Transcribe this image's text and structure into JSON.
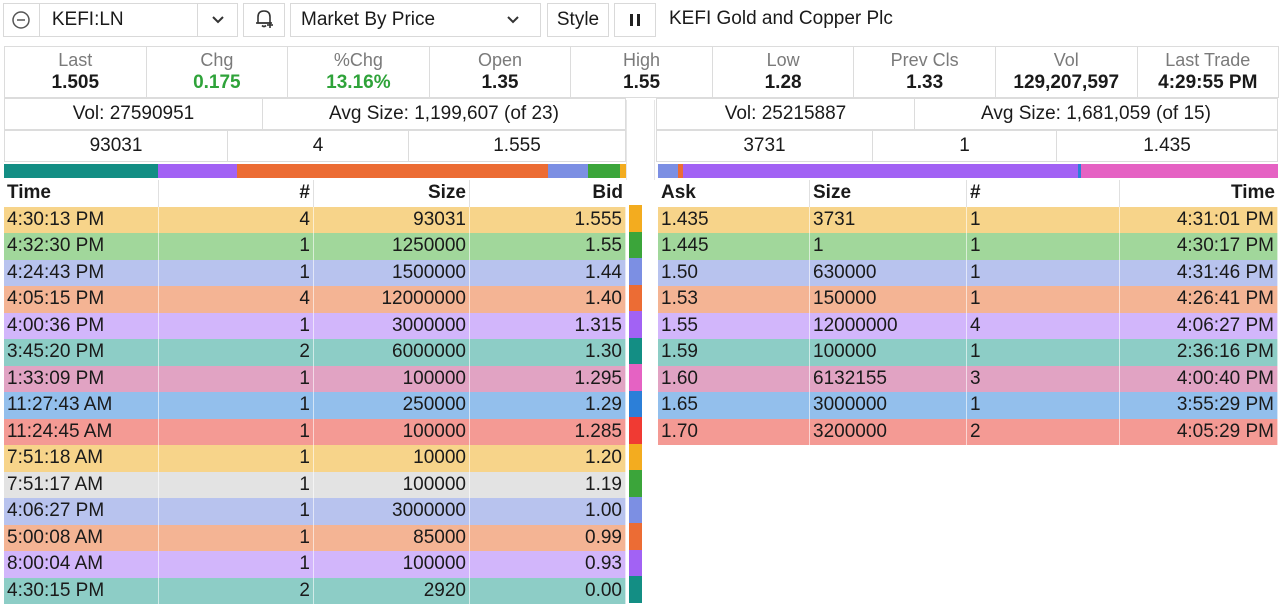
{
  "toolbar": {
    "symbol": "KEFI:LN",
    "view": "Market By Price",
    "style_label": "Style",
    "company_name": "KEFI Gold and Copper Plc"
  },
  "icons": {
    "collapse": "minus-circle-icon",
    "dropdown": "chevron-down-icon",
    "alert": "bell-plus-icon",
    "pause": "pause-icon"
  },
  "stats": [
    {
      "label": "Last",
      "value": "1.505"
    },
    {
      "label": "Chg",
      "value": "0.175",
      "color": "#2fa33a"
    },
    {
      "label": "%Chg",
      "value": "13.16%",
      "color": "#2fa33a"
    },
    {
      "label": "Open",
      "value": "1.35"
    },
    {
      "label": "High",
      "value": "1.55"
    },
    {
      "label": "Low",
      "value": "1.28"
    },
    {
      "label": "Prev Cls",
      "value": "1.33"
    },
    {
      "label": "Vol",
      "value": "129,207,597"
    },
    {
      "label": "Last Trade",
      "value": "4:29:55 PM"
    }
  ],
  "bid_summary": {
    "vol": "Vol: 27590951",
    "avg": "Avg Size: 1,199,607 (of 23)",
    "top_size": "93031",
    "top_count": "4",
    "top_price": "1.555"
  },
  "ask_summary": {
    "vol": "Vol: 25215887",
    "avg": "Avg Size: 1,681,059 (of 15)",
    "top_size": "3731",
    "top_count": "1",
    "top_price": "1.435"
  },
  "bid_headers": {
    "time": "Time",
    "count": "#",
    "size": "Size",
    "price": "Bid"
  },
  "ask_headers": {
    "price": "Ask",
    "size": "Size",
    "count": "#",
    "time": "Time"
  },
  "bids": [
    {
      "time": "4:30:13 PM",
      "count": "4",
      "size": "93031",
      "price": "1.555"
    },
    {
      "time": "4:32:30 PM",
      "count": "1",
      "size": "1250000",
      "price": "1.55"
    },
    {
      "time": "4:24:43 PM",
      "count": "1",
      "size": "1500000",
      "price": "1.44"
    },
    {
      "time": "4:05:15 PM",
      "count": "4",
      "size": "12000000",
      "price": "1.40"
    },
    {
      "time": "4:00:36 PM",
      "count": "1",
      "size": "3000000",
      "price": "1.315"
    },
    {
      "time": "3:45:20 PM",
      "count": "2",
      "size": "6000000",
      "price": "1.30"
    },
    {
      "time": "1:33:09 PM",
      "count": "1",
      "size": "100000",
      "price": "1.295"
    },
    {
      "time": "11:27:43 AM",
      "count": "1",
      "size": "250000",
      "price": "1.29"
    },
    {
      "time": "11:24:45 AM",
      "count": "1",
      "size": "100000",
      "price": "1.285"
    },
    {
      "time": "7:51:18 AM",
      "count": "1",
      "size": "10000",
      "price": "1.20"
    },
    {
      "time": "7:51:17 AM",
      "count": "1",
      "size": "100000",
      "price": "1.19"
    },
    {
      "time": "4:06:27 PM",
      "count": "1",
      "size": "3000000",
      "price": "1.00"
    },
    {
      "time": "5:00:08 AM",
      "count": "1",
      "size": "85000",
      "price": "0.99"
    },
    {
      "time": "8:00:04 AM",
      "count": "1",
      "size": "100000",
      "price": "0.93"
    },
    {
      "time": "4:30:15 PM",
      "count": "2",
      "size": "2920",
      "price": "0.00"
    }
  ],
  "asks": [
    {
      "price": "1.435",
      "size": "3731",
      "count": "1",
      "time": "4:31:01 PM"
    },
    {
      "price": "1.445",
      "size": "1",
      "count": "1",
      "time": "4:30:17 PM"
    },
    {
      "price": "1.50",
      "size": "630000",
      "count": "1",
      "time": "4:31:46 PM"
    },
    {
      "price": "1.53",
      "size": "150000",
      "count": "1",
      "time": "4:26:41 PM"
    },
    {
      "price": "1.55",
      "size": "12000000",
      "count": "4",
      "time": "4:06:27 PM"
    },
    {
      "price": "1.59",
      "size": "100000",
      "count": "1",
      "time": "2:36:16 PM"
    },
    {
      "price": "1.60",
      "size": "6132155",
      "count": "3",
      "time": "4:00:40 PM"
    },
    {
      "price": "1.65",
      "size": "3000000",
      "count": "1",
      "time": "3:55:29 PM"
    },
    {
      "price": "1.70",
      "size": "3200000",
      "count": "2",
      "time": "4:05:29 PM"
    }
  ],
  "level_colors": {
    "row_bg": [
      "#f7d48a",
      "#a1d79b",
      "#b8c3ee",
      "#f4b494",
      "#d2b6fb",
      "#8dcdc6",
      "#e1a3c3",
      "#93bfec",
      "#f49a94",
      "#f7d48a",
      "#e3e3e3",
      "#b8c3ee",
      "#f4b494",
      "#d2b6fb",
      "#8dcdc6"
    ],
    "marker": [
      "#f3ac1f",
      "#3ba53a",
      "#7c8fe3",
      "#ec6c34",
      "#a262f4",
      "#138e84",
      "#e562c3",
      "#2c7fd8",
      "#f03a33",
      "#f3ac1f",
      "#3ba53a",
      "#7c8fe3",
      "#ec6c34",
      "#a262f4",
      "#138e84"
    ]
  },
  "bid_strip": [
    {
      "color": "#138e84",
      "fraction": 0.248
    },
    {
      "color": "#a262f4",
      "fraction": 0.127
    },
    {
      "color": "#ec6c34",
      "fraction": 0.5
    },
    {
      "color": "#7c8fe3",
      "fraction": 0.064
    },
    {
      "color": "#3ba53a",
      "fraction": 0.051
    },
    {
      "color": "#f3ac1f",
      "fraction": 0.01
    }
  ],
  "ask_strip": [
    {
      "color": "#7c8fe3",
      "fraction": 0.032
    },
    {
      "color": "#ec6c34",
      "fraction": 0.008
    },
    {
      "color": "#a262f4",
      "fraction": 0.637
    },
    {
      "color": "#2c7fd8",
      "fraction": 0.005
    },
    {
      "color": "#e562c3",
      "fraction": 0.318
    }
  ]
}
